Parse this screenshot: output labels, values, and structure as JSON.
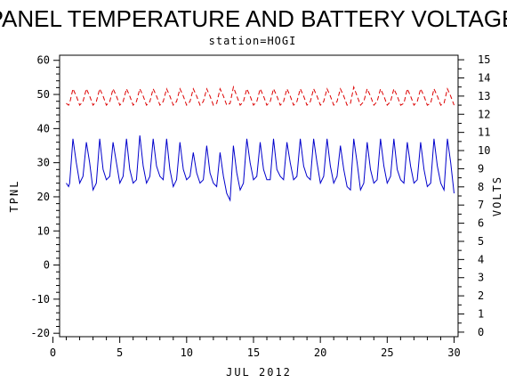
{
  "chart_data": {
    "type": "line",
    "title": "PANEL TEMPERATURE AND BATTERY VOLTAGE",
    "subtitle": "station=HOGI",
    "xlabel": "JUL 2012",
    "ylabel_left": "TPNL",
    "ylabel_right": "VOLTS",
    "xlim": [
      0.5,
      30.3
    ],
    "xticks": [
      0,
      5,
      10,
      15,
      20,
      25,
      30
    ],
    "ylim_left": [
      -21,
      61.5
    ],
    "yticks_left": [
      -20,
      -10,
      0,
      10,
      20,
      30,
      40,
      50,
      60
    ],
    "ylim_right": [
      -0.25,
      15.25
    ],
    "yticks_right": [
      0,
      1,
      2,
      3,
      4,
      5,
      6,
      7,
      8,
      9,
      10,
      11,
      12,
      13,
      14,
      15
    ],
    "grid": false,
    "colors": {
      "panel_temperature": "#0000cc",
      "battery_voltage": "#dd0000"
    },
    "series": [
      {
        "axis": "left",
        "style": "solid",
        "color": "#0000cc",
        "x": [
          1.0,
          1.17,
          1.25,
          1.5,
          1.75,
          2.0,
          2.25,
          2.5,
          2.75,
          3.0,
          3.25,
          3.5,
          3.75,
          4.0,
          4.25,
          4.5,
          4.75,
          5.0,
          5.25,
          5.5,
          5.75,
          6.0,
          6.25,
          6.5,
          6.75,
          7.0,
          7.25,
          7.5,
          7.75,
          8.0,
          8.25,
          8.5,
          8.75,
          9.0,
          9.25,
          9.5,
          9.75,
          10.0,
          10.25,
          10.5,
          10.75,
          11.0,
          11.25,
          11.5,
          11.75,
          12.0,
          12.25,
          12.5,
          12.75,
          13.0,
          13.25,
          13.5,
          13.75,
          14.0,
          14.25,
          14.5,
          14.75,
          15.0,
          15.25,
          15.5,
          15.75,
          16.0,
          16.25,
          16.5,
          16.75,
          17.0,
          17.25,
          17.5,
          17.75,
          18.0,
          18.25,
          18.5,
          18.75,
          19.0,
          19.25,
          19.5,
          19.75,
          20.0,
          20.25,
          20.5,
          20.75,
          21.0,
          21.25,
          21.5,
          21.75,
          22.0,
          22.25,
          22.5,
          22.75,
          23.0,
          23.25,
          23.5,
          23.75,
          24.0,
          24.25,
          24.5,
          24.75,
          25.0,
          25.25,
          25.5,
          25.75,
          26.0,
          26.25,
          26.5,
          26.75,
          27.0,
          27.25,
          27.5,
          27.75,
          28.0,
          28.25,
          28.5,
          28.75,
          29.0,
          29.25,
          29.5,
          29.75,
          30.0
        ],
        "y": [
          24,
          23,
          24,
          37,
          30,
          24,
          26,
          36,
          30,
          22,
          24,
          37,
          28,
          25,
          26,
          36,
          30,
          24,
          26,
          37,
          28,
          24,
          25,
          38,
          29,
          24,
          26,
          37,
          29,
          26,
          25,
          37,
          28,
          23,
          25,
          36,
          28,
          25,
          26,
          33,
          27,
          24,
          25,
          35,
          27,
          24,
          23,
          33,
          26,
          21,
          19,
          35,
          27,
          22,
          24,
          37,
          30,
          25,
          26,
          36,
          28,
          25,
          25,
          37,
          28,
          26,
          25,
          36,
          30,
          25,
          26,
          37,
          29,
          26,
          25,
          37,
          30,
          24,
          26,
          37,
          29,
          24,
          26,
          35,
          28,
          23,
          22,
          37,
          30,
          22,
          24,
          36,
          28,
          24,
          25,
          37,
          29,
          24,
          26,
          37,
          28,
          25,
          24,
          36,
          29,
          24,
          25,
          36,
          28,
          23,
          24,
          37,
          29,
          24,
          22,
          37,
          30,
          21
        ]
      },
      {
        "axis": "right",
        "style": "dashed",
        "color": "#dd0000",
        "x": [
          1.0,
          1.17,
          1.25,
          1.5,
          1.75,
          2.0,
          2.25,
          2.5,
          2.75,
          3.0,
          3.25,
          3.5,
          3.75,
          4.0,
          4.25,
          4.5,
          4.75,
          5.0,
          5.25,
          5.5,
          5.75,
          6.0,
          6.25,
          6.5,
          6.75,
          7.0,
          7.25,
          7.5,
          7.75,
          8.0,
          8.25,
          8.5,
          8.75,
          9.0,
          9.25,
          9.5,
          9.75,
          10.0,
          10.25,
          10.5,
          10.75,
          11.0,
          11.25,
          11.5,
          11.75,
          12.0,
          12.25,
          12.5,
          12.75,
          13.0,
          13.25,
          13.5,
          13.75,
          14.0,
          14.25,
          14.5,
          14.75,
          15.0,
          15.25,
          15.5,
          15.75,
          16.0,
          16.25,
          16.5,
          16.75,
          17.0,
          17.25,
          17.5,
          17.75,
          18.0,
          18.25,
          18.5,
          18.75,
          19.0,
          19.25,
          19.5,
          19.75,
          20.0,
          20.25,
          20.5,
          20.75,
          21.0,
          21.25,
          21.5,
          21.75,
          22.0,
          22.25,
          22.5,
          22.75,
          23.0,
          23.25,
          23.5,
          23.75,
          24.0,
          24.25,
          24.5,
          24.75,
          25.0,
          25.25,
          25.5,
          25.75,
          26.0,
          26.25,
          26.5,
          26.75,
          27.0,
          27.25,
          27.5,
          27.75,
          28.0,
          28.25,
          28.5,
          28.75,
          29.0,
          29.25,
          29.5,
          29.75,
          30.0
        ],
        "y": [
          12.6,
          12.5,
          12.6,
          13.4,
          13.0,
          12.5,
          12.7,
          13.4,
          13.0,
          12.5,
          12.7,
          13.4,
          13.0,
          12.5,
          12.7,
          13.4,
          13.0,
          12.5,
          12.7,
          13.4,
          13.0,
          12.5,
          12.7,
          13.4,
          13.0,
          12.5,
          12.7,
          13.4,
          13.0,
          12.5,
          12.7,
          13.4,
          13.0,
          12.5,
          12.7,
          13.4,
          13.0,
          12.5,
          12.7,
          13.4,
          13.0,
          12.5,
          12.7,
          13.4,
          13.0,
          12.5,
          12.6,
          13.4,
          13.0,
          12.5,
          12.6,
          13.5,
          13.0,
          12.5,
          12.7,
          13.4,
          13.0,
          12.5,
          12.7,
          13.4,
          13.0,
          12.5,
          12.7,
          13.4,
          13.0,
          12.5,
          12.7,
          13.4,
          13.0,
          12.5,
          12.7,
          13.4,
          13.0,
          12.5,
          12.7,
          13.4,
          13.0,
          12.5,
          12.7,
          13.4,
          13.0,
          12.5,
          12.7,
          13.4,
          13.0,
          12.5,
          12.6,
          13.5,
          13.0,
          12.5,
          12.7,
          13.4,
          13.0,
          12.5,
          12.7,
          13.4,
          13.0,
          12.5,
          12.7,
          13.4,
          13.0,
          12.5,
          12.6,
          13.4,
          13.0,
          12.5,
          12.7,
          13.4,
          13.0,
          12.5,
          12.6,
          13.4,
          13.0,
          12.5,
          12.6,
          13.4,
          13.0,
          12.5
        ]
      }
    ]
  }
}
